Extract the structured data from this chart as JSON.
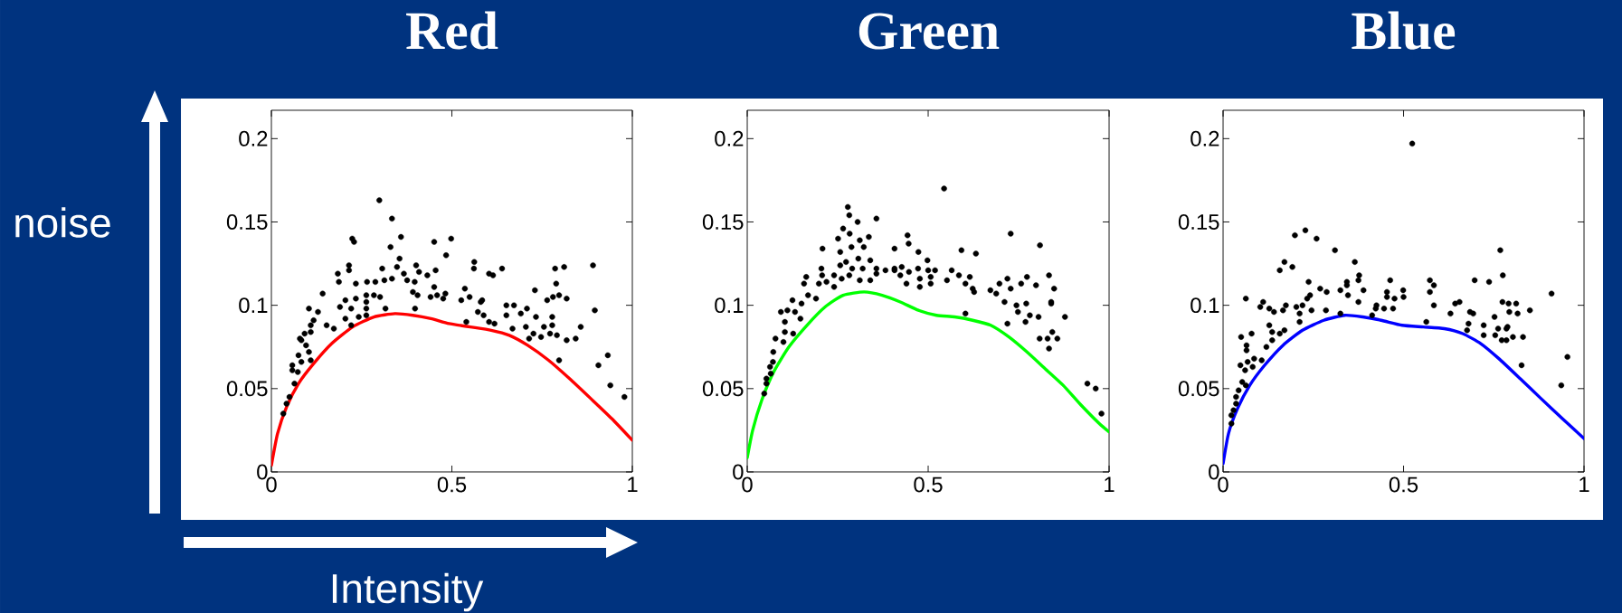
{
  "chart_data": [
    {
      "type": "scatter",
      "title": "Red",
      "xlabel": "Intensity",
      "ylabel": "noise",
      "xlim": [
        0,
        1
      ],
      "ylim": [
        0,
        0.217
      ],
      "xticks": [
        0,
        0.5,
        1
      ],
      "yticks": [
        0,
        0.05,
        0.1,
        0.15,
        0.2
      ],
      "series": [
        {
          "marker": "circle",
          "color": "#000000",
          "x": [
            0.299,
            0.334,
            0.359,
            0.224,
            0.229,
            0.33,
            0.451,
            0.498,
            0.484,
            0.355,
            0.562,
            0.561,
            0.639,
            0.603,
            0.614,
            0.891,
            0.811,
            0.786,
            0.789,
            0.401,
            0.409,
            0.432,
            0.455,
            0.215,
            0.215,
            0.184,
            0.187,
            0.307,
            0.348,
            0.234,
            0.265,
            0.288,
            0.313,
            0.334,
            0.367,
            0.376,
            0.397,
            0.451,
            0.482,
            0.392,
            0.405,
            0.441,
            0.459,
            0.476,
            0.536,
            0.549,
            0.526,
            0.584,
            0.142,
            0.205,
            0.234,
            0.263,
            0.284,
            0.301,
            0.263,
            0.19,
            0.221,
            0.263,
            0.316,
            0.398,
            0.104,
            0.129,
            0.117,
            0.109,
            0.153,
            0.173,
            0.205,
            0.221,
            0.242,
            0.263,
            0.092,
            0.109,
            0.079,
            0.083,
            0.096,
            0.075,
            0.104,
            0.109,
            0.058,
            0.083,
            0.058,
            0.073,
            0.064,
            0.05,
            0.042,
            0.033,
            0.54,
            0.572,
            0.588,
            0.58,
            0.603,
            0.618,
            0.651,
            0.672,
            0.651,
            0.668,
            0.691,
            0.708,
            0.73,
            0.733,
            0.705,
            0.726,
            0.747,
            0.755,
            0.764,
            0.78,
            0.797,
            0.818,
            0.778,
            0.778,
            0.772,
            0.791,
            0.818,
            0.843,
            0.857,
            0.797,
            0.896,
            0.932,
            0.906,
            0.939,
            0.978,
            0.714
          ],
          "values": [
            0.163,
            0.152,
            0.141,
            0.14,
            0.138,
            0.135,
            0.138,
            0.14,
            0.13,
            0.128,
            0.126,
            0.122,
            0.122,
            0.119,
            0.118,
            0.124,
            0.123,
            0.122,
            0.113,
            0.124,
            0.12,
            0.118,
            0.121,
            0.124,
            0.121,
            0.119,
            0.114,
            0.122,
            0.123,
            0.113,
            0.114,
            0.114,
            0.115,
            0.116,
            0.119,
            0.115,
            0.114,
            0.111,
            0.107,
            0.108,
            0.106,
            0.105,
            0.106,
            0.104,
            0.11,
            0.105,
            0.103,
            0.103,
            0.107,
            0.103,
            0.104,
            0.106,
            0.106,
            0.105,
            0.102,
            0.099,
            0.098,
            0.098,
            0.098,
            0.098,
            0.098,
            0.096,
            0.091,
            0.088,
            0.088,
            0.086,
            0.092,
            0.088,
            0.093,
            0.094,
            0.083,
            0.084,
            0.08,
            0.079,
            0.076,
            0.07,
            0.072,
            0.067,
            0.064,
            0.066,
            0.061,
            0.06,
            0.053,
            0.045,
            0.041,
            0.035,
            0.09,
            0.096,
            0.094,
            0.102,
            0.09,
            0.089,
            0.1,
            0.1,
            0.094,
            0.086,
            0.095,
            0.098,
            0.109,
            0.093,
            0.087,
            0.083,
            0.081,
            0.087,
            0.103,
            0.105,
            0.106,
            0.104,
            0.093,
            0.088,
            0.083,
            0.082,
            0.079,
            0.08,
            0.087,
            0.067,
            0.097,
            0.07,
            0.064,
            0.052,
            0.045,
            0.08
          ]
        },
        {
          "type": "line",
          "color": "#ff0000",
          "x": [
            0,
            0.017,
            0.042,
            0.075,
            0.117,
            0.167,
            0.225,
            0.284,
            0.342,
            0.392,
            0.442,
            0.492,
            0.551,
            0.609,
            0.659,
            0.71,
            0.768,
            0.826,
            0.885,
            0.943,
            1.0
          ],
          "values": [
            0.004,
            0.023,
            0.039,
            0.053,
            0.065,
            0.077,
            0.087,
            0.093,
            0.095,
            0.094,
            0.092,
            0.089,
            0.087,
            0.085,
            0.082,
            0.076,
            0.067,
            0.056,
            0.044,
            0.032,
            0.019
          ]
        }
      ]
    },
    {
      "type": "scatter",
      "title": "Green",
      "xlim": [
        0,
        1
      ],
      "ylim": [
        0,
        0.217
      ],
      "xticks": [
        0,
        0.5,
        1
      ],
      "yticks": [
        0,
        0.05,
        0.1,
        0.15,
        0.2
      ],
      "series": [
        {
          "marker": "circle",
          "color": "#000000",
          "x": [
            0.544,
            0.278,
            0.282,
            0.305,
            0.357,
            0.265,
            0.283,
            0.728,
            0.809,
            0.251,
            0.311,
            0.336,
            0.443,
            0.446,
            0.208,
            0.288,
            0.322,
            0.407,
            0.592,
            0.632,
            0.473,
            0.257,
            0.205,
            0.207,
            0.24,
            0.257,
            0.273,
            0.29,
            0.307,
            0.319,
            0.34,
            0.357,
            0.382,
            0.407,
            0.427,
            0.498,
            0.519,
            0.565,
            0.5,
            0.472,
            0.447,
            0.423,
            0.407,
            0.163,
            0.157,
            0.198,
            0.219,
            0.24,
            0.261,
            0.282,
            0.311,
            0.34,
            0.357,
            0.44,
            0.477,
            0.477,
            0.507,
            0.507,
            0.552,
            0.585,
            0.603,
            0.615,
            0.623,
            0.627,
            0.672,
            0.688,
            0.697,
            0.719,
            0.728,
            0.757,
            0.773,
            0.798,
            0.834,
            0.848,
            0.84,
            0.84,
            0.711,
            0.744,
            0.771,
            0.748,
            0.781,
            0.805,
            0.769,
            0.719,
            0.878,
            0.603,
            0.843,
            0.808,
            0.83,
            0.857,
            0.834,
            0.94,
            0.963,
            0.979,
            0.125,
            0.15,
            0.168,
            0.19,
            0.093,
            0.111,
            0.132,
            0.104,
            0.147,
            0.104,
            0.127,
            0.078,
            0.1,
            0.072,
            0.071,
            0.063,
            0.065,
            0.053,
            0.053,
            0.047
          ],
          "values": [
            0.17,
            0.159,
            0.154,
            0.15,
            0.152,
            0.146,
            0.143,
            0.143,
            0.136,
            0.14,
            0.139,
            0.141,
            0.142,
            0.137,
            0.134,
            0.135,
            0.135,
            0.134,
            0.133,
            0.131,
            0.132,
            0.132,
            0.122,
            0.118,
            0.118,
            0.124,
            0.126,
            0.122,
            0.128,
            0.122,
            0.127,
            0.122,
            0.121,
            0.122,
            0.123,
            0.127,
            0.121,
            0.121,
            0.121,
            0.122,
            0.12,
            0.118,
            0.121,
            0.117,
            0.113,
            0.113,
            0.114,
            0.111,
            0.116,
            0.118,
            0.115,
            0.115,
            0.119,
            0.113,
            0.116,
            0.111,
            0.117,
            0.113,
            0.115,
            0.118,
            0.113,
            0.117,
            0.11,
            0.108,
            0.109,
            0.107,
            0.113,
            0.116,
            0.11,
            0.113,
            0.117,
            0.112,
            0.118,
            0.11,
            0.102,
            0.101,
            0.102,
            0.1,
            0.101,
            0.096,
            0.094,
            0.093,
            0.09,
            0.089,
            0.093,
            0.095,
            0.084,
            0.08,
            0.08,
            0.08,
            0.074,
            0.053,
            0.05,
            0.035,
            0.103,
            0.101,
            0.106,
            0.104,
            0.096,
            0.097,
            0.096,
            0.09,
            0.092,
            0.084,
            0.083,
            0.08,
            0.078,
            0.072,
            0.066,
            0.063,
            0.059,
            0.056,
            0.053,
            0.047
          ]
        },
        {
          "type": "line",
          "color": "#00ff00",
          "x": [
            0,
            0.015,
            0.04,
            0.073,
            0.115,
            0.165,
            0.215,
            0.265,
            0.323,
            0.373,
            0.423,
            0.473,
            0.523,
            0.573,
            0.623,
            0.673,
            0.723,
            0.773,
            0.823,
            0.873,
            0.923,
            0.973,
            1.0
          ],
          "values": [
            0.0085,
            0.025,
            0.043,
            0.06,
            0.075,
            0.088,
            0.099,
            0.106,
            0.108,
            0.106,
            0.102,
            0.097,
            0.094,
            0.093,
            0.091,
            0.088,
            0.081,
            0.072,
            0.062,
            0.052,
            0.04,
            0.029,
            0.024
          ]
        }
      ]
    },
    {
      "type": "scatter",
      "title": "Blue",
      "xlim": [
        0,
        1
      ],
      "ylim": [
        0,
        0.217
      ],
      "xticks": [
        0,
        0.5,
        1
      ],
      "yticks": [
        0,
        0.05,
        0.1,
        0.15,
        0.2
      ],
      "series": [
        {
          "marker": "circle",
          "color": "#000000",
          "x": [
            0.524,
            0.228,
            0.199,
            0.259,
            0.31,
            0.768,
            0.365,
            0.17,
            0.157,
            0.192,
            0.775,
            0.377,
            0.375,
            0.463,
            0.573,
            0.584,
            0.573,
            0.697,
            0.737,
            0.237,
            0.343,
            0.343,
            0.389,
            0.325,
            0.269,
            0.287,
            0.499,
            0.5,
            0.454,
            0.454,
            0.475,
            0.471,
            0.446,
            0.425,
            0.423,
            0.346,
            0.375,
            0.91,
            0.063,
            0.111,
            0.103,
            0.128,
            0.141,
            0.166,
            0.174,
            0.203,
            0.22,
            0.233,
            0.241,
            0.245,
            0.212,
            0.212,
            0.285,
            0.325,
            0.584,
            0.643,
            0.655,
            0.63,
            0.684,
            0.693,
            0.774,
            0.791,
            0.812,
            0.793,
            0.816,
            0.85,
            0.752,
            0.563,
            0.413,
            0.68,
            0.676,
            0.722,
            0.762,
            0.788,
            0.785,
            0.722,
            0.754,
            0.772,
            0.785,
            0.803,
            0.831,
            0.827,
            0.954,
            0.937,
            0.05,
            0.079,
            0.128,
            0.136,
            0.157,
            0.17,
            0.065,
            0.065,
            0.12,
            0.136,
            0.086,
            0.107,
            0.048,
            0.068,
            0.082,
            0.061,
            0.053,
            0.043,
            0.063,
            0.036,
            0.036,
            0.029,
            0.023,
            0.023
          ],
          "values": [
            0.197,
            0.145,
            0.142,
            0.14,
            0.133,
            0.133,
            0.126,
            0.126,
            0.121,
            0.123,
            0.118,
            0.118,
            0.115,
            0.115,
            0.115,
            0.112,
            0.108,
            0.115,
            0.114,
            0.114,
            0.114,
            0.112,
            0.109,
            0.109,
            0.11,
            0.108,
            0.109,
            0.105,
            0.108,
            0.105,
            0.104,
            0.098,
            0.098,
            0.1,
            0.098,
            0.106,
            0.102,
            0.107,
            0.104,
            0.102,
            0.099,
            0.098,
            0.096,
            0.097,
            0.1,
            0.099,
            0.1,
            0.104,
            0.106,
            0.097,
            0.095,
            0.09,
            0.097,
            0.095,
            0.1,
            0.101,
            0.102,
            0.095,
            0.096,
            0.095,
            0.102,
            0.101,
            0.101,
            0.096,
            0.095,
            0.097,
            0.093,
            0.09,
            0.094,
            0.089,
            0.085,
            0.088,
            0.086,
            0.087,
            0.086,
            0.082,
            0.082,
            0.079,
            0.079,
            0.081,
            0.081,
            0.064,
            0.069,
            0.052,
            0.081,
            0.083,
            0.088,
            0.084,
            0.083,
            0.085,
            0.076,
            0.073,
            0.075,
            0.079,
            0.068,
            0.067,
            0.064,
            0.066,
            0.063,
            0.061,
            0.054,
            0.049,
            0.052,
            0.045,
            0.041,
            0.037,
            0.034,
            0.029
          ]
        },
        {
          "type": "line",
          "color": "#0000ff",
          "x": [
            0,
            0.015,
            0.04,
            0.074,
            0.115,
            0.166,
            0.22,
            0.279,
            0.337,
            0.387,
            0.438,
            0.496,
            0.555,
            0.613,
            0.664,
            0.714,
            0.764,
            0.823,
            0.881,
            0.94,
            1.0
          ],
          "values": [
            0.005,
            0.023,
            0.038,
            0.052,
            0.064,
            0.076,
            0.085,
            0.091,
            0.094,
            0.093,
            0.091,
            0.088,
            0.087,
            0.086,
            0.083,
            0.077,
            0.068,
            0.056,
            0.044,
            0.032,
            0.02
          ]
        }
      ]
    }
  ]
}
